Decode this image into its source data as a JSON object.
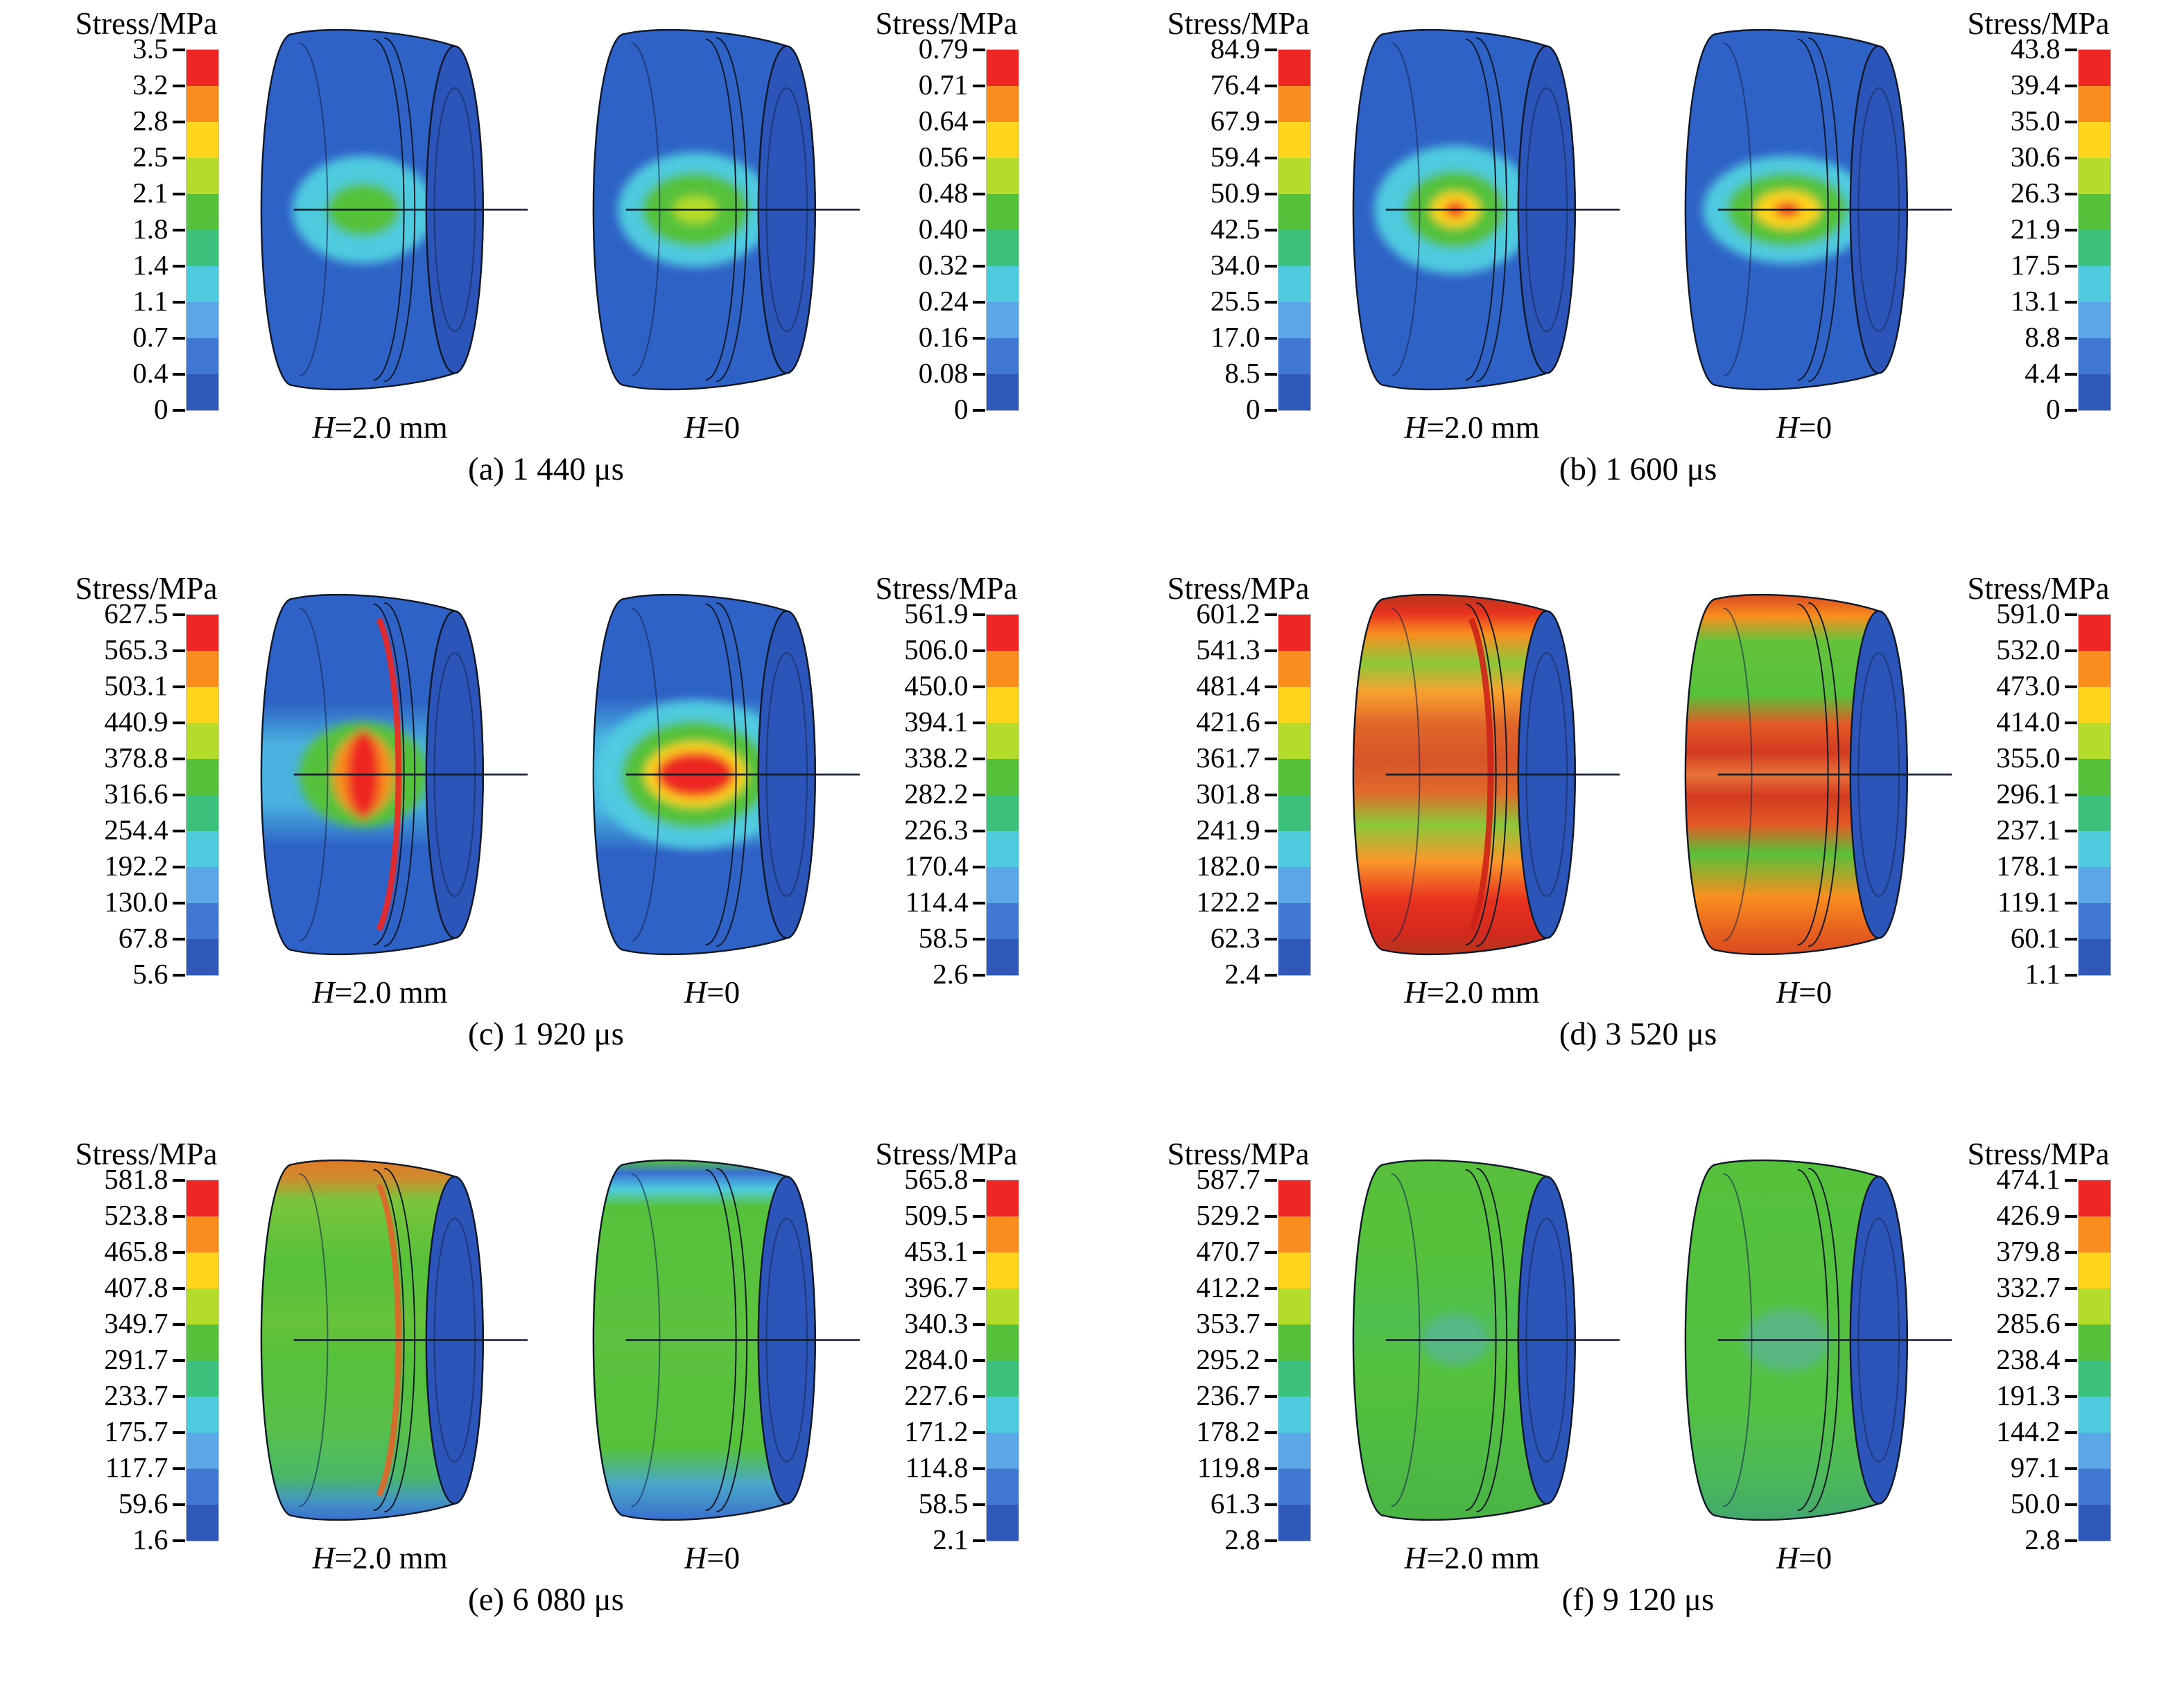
{
  "chart_data": {
    "type": "heatmap",
    "description_visible_text_only": "",
    "colorbar_title": "Stress/MPa",
    "colormap_top_to_bottom": [
      "#ee2724",
      "#f98e1f",
      "#ffd51d",
      "#b5dc2a",
      "#55c13a",
      "#3cc17c",
      "#4fcbe0",
      "#5aa6e6",
      "#3f77d2",
      "#2f58b8"
    ],
    "panels": [
      {
        "id": "a",
        "caption": "(a) 1 440 μs",
        "left_colorbar": {
          "title": "Stress/MPa",
          "ticks": [
            "3.5",
            "3.2",
            "2.8",
            "2.5",
            "2.1",
            "1.8",
            "1.4",
            "1.1",
            "0.7",
            "0.4",
            "0"
          ]
        },
        "right_colorbar": {
          "title": "Stress/MPa",
          "ticks": [
            "0.79",
            "0.71",
            "0.64",
            "0.56",
            "0.48",
            "0.40",
            "0.32",
            "0.24",
            "0.16",
            "0.08",
            "0"
          ]
        },
        "cylinders": [
          {
            "label_var": "H",
            "label_rest": "=2.0 mm",
            "appearance": {
              "body": [
                [
                  0,
                  "#2e62c6"
                ],
                [
                  1,
                  "#2e62c6"
                ]
              ],
              "cap": "#2b55b8",
              "blob": [
                [
                  "#4fcbe0",
                  105,
                  80
                ],
                [
                  "#55c13a",
                  55,
                  40
                ]
              ],
              "groove": null
            }
          },
          {
            "label_var": "H",
            "label_rest": "=0",
            "appearance": {
              "body": [
                [
                  0,
                  "#2e62c6"
                ],
                [
                  1,
                  "#2e62c6"
                ]
              ],
              "cap": "#2b55b8",
              "blob": [
                [
                  "#4fcbe0",
                  115,
                  85
                ],
                [
                  "#55c13a",
                  80,
                  55
                ],
                [
                  "#b5dc2a",
                  32,
                  20
                ]
              ],
              "groove": null
            }
          }
        ]
      },
      {
        "id": "b",
        "caption": "(b) 1 600 μs",
        "left_colorbar": {
          "title": "Stress/MPa",
          "ticks": [
            "84.9",
            "76.4",
            "67.9",
            "59.4",
            "50.9",
            "42.5",
            "34.0",
            "25.5",
            "17.0",
            "8.5",
            "0"
          ]
        },
        "right_colorbar": {
          "title": "Stress/MPa",
          "ticks": [
            "43.8",
            "39.4",
            "35.0",
            "30.6",
            "26.3",
            "21.9",
            "17.5",
            "13.1",
            "8.8",
            "4.4",
            "0"
          ]
        },
        "cylinders": [
          {
            "label_var": "H",
            "label_rest": "=2.0 mm",
            "appearance": {
              "body": [
                [
                  0,
                  "#2e62c6"
                ],
                [
                  1,
                  "#2e62c6"
                ]
              ],
              "cap": "#2b55b8",
              "blob": [
                [
                  "#4fcbe0",
                  120,
                  95
                ],
                [
                  "#55c13a",
                  75,
                  58
                ],
                [
                  "#ffd51d",
                  36,
                  26
                ],
                [
                  "#ee2724",
                  16,
                  12
                ]
              ],
              "groove": null
            }
          },
          {
            "label_var": "H",
            "label_rest": "=0",
            "appearance": {
              "body": [
                [
                  0,
                  "#2e62c6"
                ],
                [
                  1,
                  "#2e62c6"
                ]
              ],
              "cap": "#2b55b8",
              "blob": [
                [
                  "#4fcbe0",
                  125,
                  80
                ],
                [
                  "#55c13a",
                  90,
                  55
                ],
                [
                  "#ffd51d",
                  48,
                  28
                ],
                [
                  "#ee2724",
                  20,
                  11
                ]
              ],
              "groove": null
            }
          }
        ]
      },
      {
        "id": "c",
        "caption": "(c) 1 920 μs",
        "left_colorbar": {
          "title": "Stress/MPa",
          "ticks": [
            "627.5",
            "565.3",
            "503.1",
            "440.9",
            "378.8",
            "316.6",
            "254.4",
            "192.2",
            "130.0",
            "67.8",
            "5.6"
          ]
        },
        "right_colorbar": {
          "title": "Stress/MPa",
          "ticks": [
            "561.9",
            "506.0",
            "450.0",
            "394.1",
            "338.2",
            "282.2",
            "226.3",
            "170.4",
            "114.4",
            "58.5",
            "2.6"
          ]
        },
        "cylinders": [
          {
            "label_var": "H",
            "label_rest": "=2.0 mm",
            "appearance": {
              "body": [
                [
                  0,
                  "#2e62c6"
                ],
                [
                  0.3,
                  "#2e62c6"
                ],
                [
                  0.42,
                  "#49b2e0"
                ],
                [
                  0.58,
                  "#49b2e0"
                ],
                [
                  0.7,
                  "#2e62c6"
                ],
                [
                  1,
                  "#2e62c6"
                ]
              ],
              "cap": "#2b55b8",
              "blob": [
                [
                  "#55c13a",
                  95,
                  78
                ],
                [
                  "#f98e1f",
                  45,
                  60
                ],
                [
                  "#ee2724",
                  24,
                  66
                ]
              ],
              "groove": "#ee2724"
            }
          },
          {
            "label_var": "H",
            "label_rest": "=0",
            "appearance": {
              "body": [
                [
                  0,
                  "#2e62c6"
                ],
                [
                  0.28,
                  "#2e62c6"
                ],
                [
                  0.4,
                  "#49b2e0"
                ],
                [
                  0.6,
                  "#49b2e0"
                ],
                [
                  0.72,
                  "#2e62c6"
                ],
                [
                  1,
                  "#2e62c6"
                ]
              ],
              "cap": "#2b55b8",
              "blob": [
                [
                  "#4fcbe0",
                  150,
                  110
                ],
                [
                  "#55c13a",
                  110,
                  80
                ],
                [
                  "#ffd51d",
                  75,
                  48
                ],
                [
                  "#ee2724",
                  58,
                  34
                ]
              ],
              "groove": null
            }
          }
        ]
      },
      {
        "id": "d",
        "caption": "(d) 3 520 μs",
        "left_colorbar": {
          "title": "Stress/MPa",
          "ticks": [
            "601.2",
            "541.3",
            "481.4",
            "421.6",
            "361.7",
            "301.8",
            "241.9",
            "182.0",
            "122.2",
            "62.3",
            "2.4"
          ]
        },
        "right_colorbar": {
          "title": "Stress/MPa",
          "ticks": [
            "591.0",
            "532.0",
            "473.0",
            "414.0",
            "355.0",
            "296.1",
            "237.1",
            "178.1",
            "119.1",
            "60.1",
            "1.1"
          ]
        },
        "cylinders": [
          {
            "label_var": "H",
            "label_rest": "=2.0 mm",
            "appearance": {
              "body": [
                [
                  0,
                  "#b5351d"
                ],
                [
                  0.05,
                  "#e8321f"
                ],
                [
                  0.11,
                  "#f98e1f"
                ],
                [
                  0.19,
                  "#8cc83a"
                ],
                [
                  0.27,
                  "#f9a12f"
                ],
                [
                  0.36,
                  "#e0662a"
                ],
                [
                  0.46,
                  "#d8542a"
                ],
                [
                  0.55,
                  "#e06a2a"
                ],
                [
                  0.64,
                  "#8cc83a"
                ],
                [
                  0.74,
                  "#f9982a"
                ],
                [
                  0.85,
                  "#e8321f"
                ],
                [
                  0.94,
                  "#d42a1e"
                ],
                [
                  1,
                  "#b5351d"
                ]
              ],
              "cap": "#2b55b8",
              "blob": null,
              "groove": "#cc2418"
            }
          },
          {
            "label_var": "H",
            "label_rest": "=0",
            "appearance": {
              "body": [
                [
                  0,
                  "#d84a20"
                ],
                [
                  0.06,
                  "#f98e1f"
                ],
                [
                  0.13,
                  "#63c23a"
                ],
                [
                  0.28,
                  "#58c13a"
                ],
                [
                  0.36,
                  "#e25a26"
                ],
                [
                  0.44,
                  "#d33a20"
                ],
                [
                  0.5,
                  "#e8743a"
                ],
                [
                  0.56,
                  "#d33a20"
                ],
                [
                  0.64,
                  "#e25a26"
                ],
                [
                  0.72,
                  "#58c13a"
                ],
                [
                  0.84,
                  "#f98e1f"
                ],
                [
                  0.93,
                  "#e8641f"
                ],
                [
                  1,
                  "#d84a20"
                ]
              ],
              "cap": "#2b55b8",
              "blob": null,
              "groove": null
            }
          }
        ]
      },
      {
        "id": "e",
        "caption": "(e) 6 080 μs",
        "left_colorbar": {
          "title": "Stress/MPa",
          "ticks": [
            "581.8",
            "523.8",
            "465.8",
            "407.8",
            "349.7",
            "291.7",
            "233.7",
            "175.7",
            "117.7",
            "59.6",
            "1.6"
          ]
        },
        "right_colorbar": {
          "title": "Stress/MPa",
          "ticks": [
            "565.8",
            "509.5",
            "453.1",
            "396.7",
            "340.3",
            "284.0",
            "227.6",
            "171.2",
            "114.8",
            "58.5",
            "2.1"
          ]
        },
        "cylinders": [
          {
            "label_var": "H",
            "label_rest": "=2.0 mm",
            "appearance": {
              "body": [
                [
                  0,
                  "#e07a28"
                ],
                [
                  0.05,
                  "#cf8c2e"
                ],
                [
                  0.11,
                  "#79c43a"
                ],
                [
                  0.3,
                  "#55c13a"
                ],
                [
                  0.45,
                  "#67c33a"
                ],
                [
                  0.55,
                  "#55c13a"
                ],
                [
                  0.75,
                  "#58c04a"
                ],
                [
                  0.88,
                  "#49b86a"
                ],
                [
                  0.95,
                  "#4494c4"
                ],
                [
                  1,
                  "#3a6fd0"
                ]
              ],
              "cap": "#2b55b8",
              "blob": null,
              "groove": "#e0662a"
            }
          },
          {
            "label_var": "H",
            "label_rest": "=0",
            "appearance": {
              "body": [
                [
                  0,
                  "#55c13a"
                ],
                [
                  0.035,
                  "#3a6fd0"
                ],
                [
                  0.08,
                  "#4fcbe0"
                ],
                [
                  0.13,
                  "#55c13a"
                ],
                [
                  0.5,
                  "#5cc23f"
                ],
                [
                  0.8,
                  "#55c13a"
                ],
                [
                  0.9,
                  "#4aa8c8"
                ],
                [
                  1,
                  "#3a6fd0"
                ]
              ],
              "cap": "#2b55b8",
              "blob": null,
              "groove": null
            }
          }
        ]
      },
      {
        "id": "f",
        "caption": "(f) 9 120 μs",
        "left_colorbar": {
          "title": "Stress/MPa",
          "ticks": [
            "587.7",
            "529.2",
            "470.7",
            "412.2",
            "353.7",
            "295.2",
            "236.7",
            "178.2",
            "119.8",
            "61.3",
            "2.8"
          ]
        },
        "right_colorbar": {
          "title": "Stress/MPa",
          "ticks": [
            "474.1",
            "426.9",
            "379.8",
            "332.7",
            "285.6",
            "238.4",
            "191.3",
            "144.2",
            "97.1",
            "50.0",
            "2.8"
          ]
        },
        "cylinders": [
          {
            "label_var": "H",
            "label_rest": "=2.0 mm",
            "appearance": {
              "body": [
                [
                  0,
                  "#57bf3c"
                ],
                [
                  0.25,
                  "#55c13a"
                ],
                [
                  0.45,
                  "#50bf4e"
                ],
                [
                  0.6,
                  "#55c13a"
                ],
                [
                  0.8,
                  "#4fbb42"
                ],
                [
                  1,
                  "#49b445"
                ]
              ],
              "cap": "#2b55b8",
              "blob": [
                [
                  "#5fb0c87a",
                  50,
                  38
                ]
              ],
              "groove": null
            }
          },
          {
            "label_var": "H",
            "label_rest": "=0",
            "appearance": {
              "body": [
                [
                  0,
                  "#55c13a"
                ],
                [
                  0.7,
                  "#53c044"
                ],
                [
                  0.88,
                  "#4cb85a"
                ],
                [
                  1,
                  "#43a86b"
                ]
              ],
              "cap": "#2b55b8",
              "blob": [
                [
                  "#5fb0c87a",
                  62,
                  46
                ]
              ],
              "groove": null
            }
          }
        ]
      }
    ]
  }
}
